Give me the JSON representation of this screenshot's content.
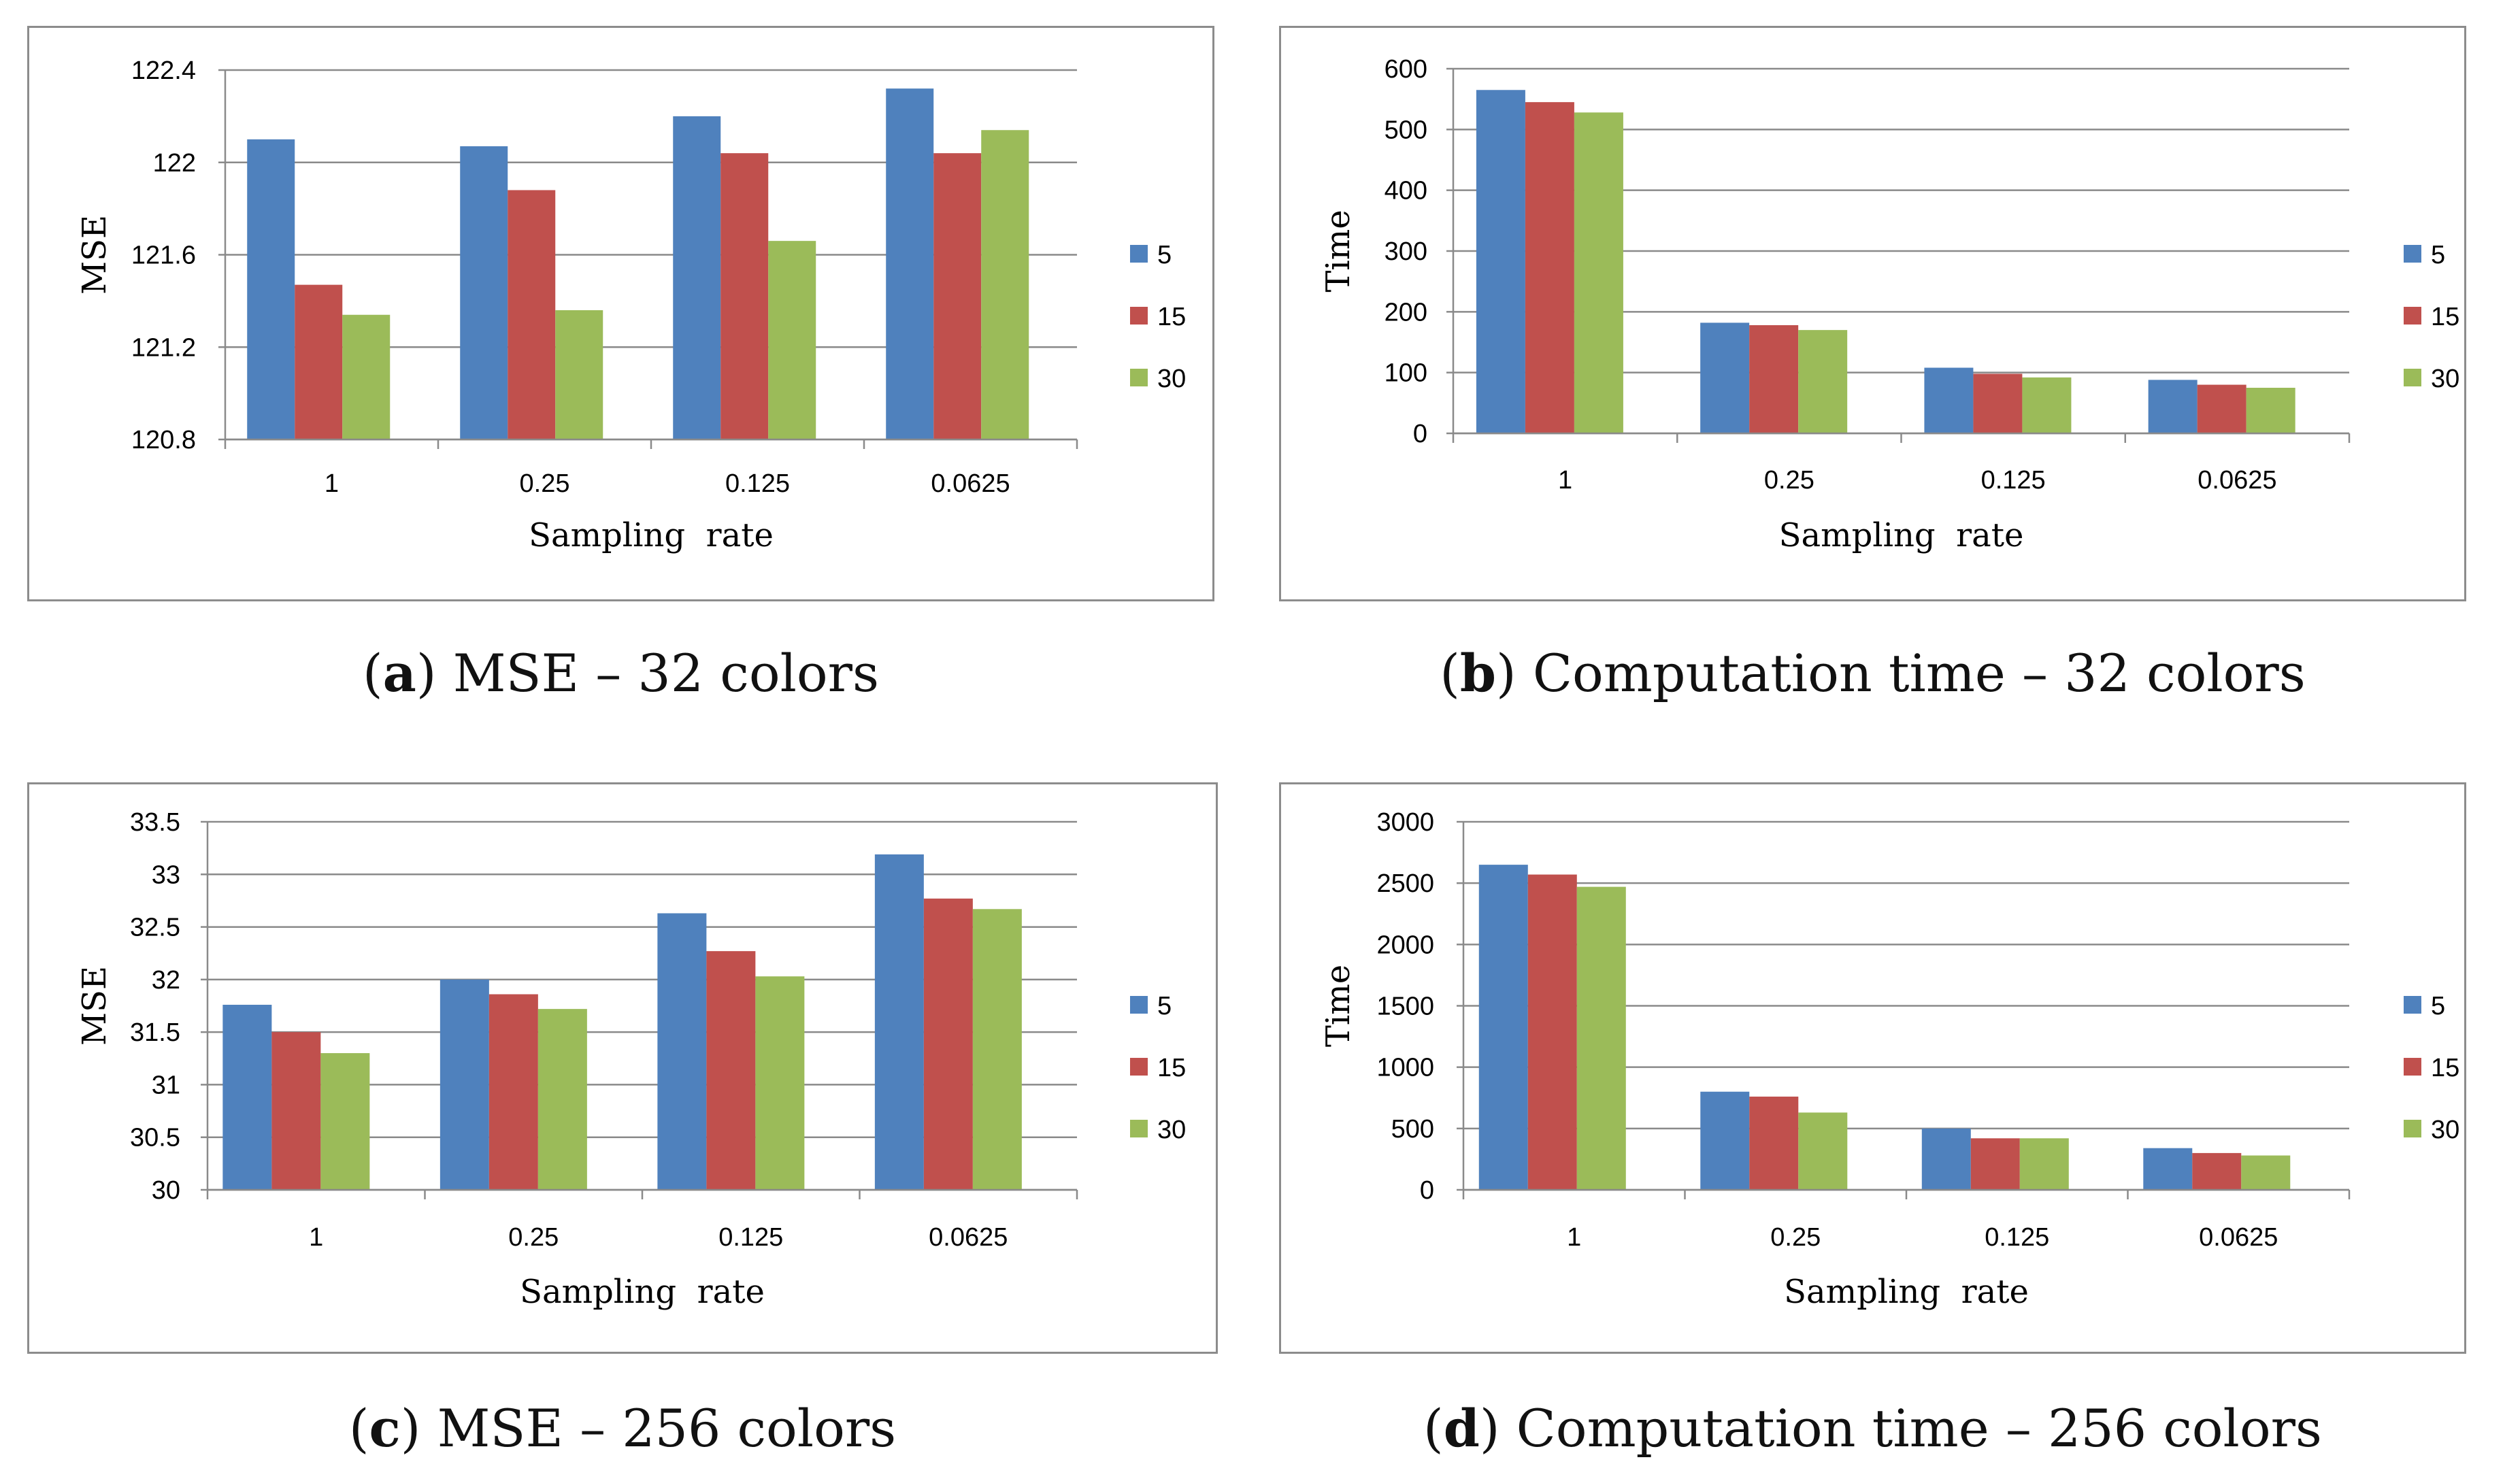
{
  "chart_data": [
    {
      "id": "a",
      "type": "bar",
      "caption_letter": "a",
      "caption_text": " MSE – 32 colors",
      "categories": [
        "1",
        "0.25",
        "0.125",
        "0.0625"
      ],
      "series": [
        {
          "name": "5",
          "color": "#4f81bd",
          "values": [
            122.1,
            122.07,
            122.2,
            122.32
          ]
        },
        {
          "name": "15",
          "color": "#c0504d",
          "values": [
            121.47,
            121.88,
            122.04,
            122.04
          ]
        },
        {
          "name": "30",
          "color": "#9bbb59",
          "values": [
            121.34,
            121.36,
            121.66,
            122.14
          ]
        }
      ],
      "ylim": [
        120.8,
        122.4
      ],
      "yticks": [
        "120.8",
        "121.2",
        "121.6",
        "122",
        "122.4"
      ],
      "ytick_values": [
        120.8,
        121.2,
        121.6,
        122.0,
        122.4
      ],
      "xlabel": "Sampling  rate",
      "ylabel": "MSE",
      "legend_position": "right"
    },
    {
      "id": "b",
      "type": "bar",
      "caption_letter": "b",
      "caption_text": " Computation time – 32 colors",
      "categories": [
        "1",
        "0.25",
        "0.125",
        "0.0625"
      ],
      "series": [
        {
          "name": "5",
          "color": "#4f81bd",
          "values": [
            565,
            182,
            108,
            88
          ]
        },
        {
          "name": "15",
          "color": "#c0504d",
          "values": [
            545,
            178,
            98,
            80
          ]
        },
        {
          "name": "30",
          "color": "#9bbb59",
          "values": [
            528,
            170,
            92,
            75
          ]
        }
      ],
      "ylim": [
        0,
        600
      ],
      "yticks": [
        "0",
        "100",
        "200",
        "300",
        "400",
        "500",
        "600"
      ],
      "ytick_values": [
        0,
        100,
        200,
        300,
        400,
        500,
        600
      ],
      "xlabel": "Sampling  rate",
      "ylabel": "Time",
      "legend_position": "right"
    },
    {
      "id": "c",
      "type": "bar",
      "caption_letter": "c",
      "caption_text": " MSE – 256 colors",
      "categories": [
        "1",
        "0.25",
        "0.125",
        "0.0625"
      ],
      "series": [
        {
          "name": "5",
          "color": "#4f81bd",
          "values": [
            31.76,
            32.0,
            32.63,
            33.19
          ]
        },
        {
          "name": "15",
          "color": "#c0504d",
          "values": [
            31.5,
            31.86,
            32.27,
            32.77
          ]
        },
        {
          "name": "30",
          "color": "#9bbb59",
          "values": [
            31.3,
            31.72,
            32.03,
            32.67
          ]
        }
      ],
      "ylim": [
        30,
        33.5
      ],
      "yticks": [
        "30",
        "30.5",
        "31",
        "31.5",
        "32",
        "32.5",
        "33",
        "33.5"
      ],
      "ytick_values": [
        30,
        30.5,
        31,
        31.5,
        32,
        32.5,
        33,
        33.5
      ],
      "xlabel": "Sampling  rate",
      "ylabel": "MSE",
      "legend_position": "right"
    },
    {
      "id": "d",
      "type": "bar",
      "caption_letter": "d",
      "caption_text": " Computation time – 256 colors",
      "categories": [
        "1",
        "0.25",
        "0.125",
        "0.0625"
      ],
      "series": [
        {
          "name": "5",
          "color": "#4f81bd",
          "values": [
            2650,
            800,
            500,
            340
          ]
        },
        {
          "name": "15",
          "color": "#c0504d",
          "values": [
            2570,
            760,
            420,
            300
          ]
        },
        {
          "name": "30",
          "color": "#9bbb59",
          "values": [
            2470,
            630,
            420,
            280
          ]
        }
      ],
      "ylim": [
        0,
        3000
      ],
      "yticks": [
        "0",
        "500",
        "1000",
        "1500",
        "2000",
        "2500",
        "3000"
      ],
      "ytick_values": [
        0,
        500,
        1000,
        1500,
        2000,
        2500,
        3000
      ],
      "xlabel": "Sampling  rate",
      "ylabel": "Time",
      "legend_position": "right"
    }
  ]
}
